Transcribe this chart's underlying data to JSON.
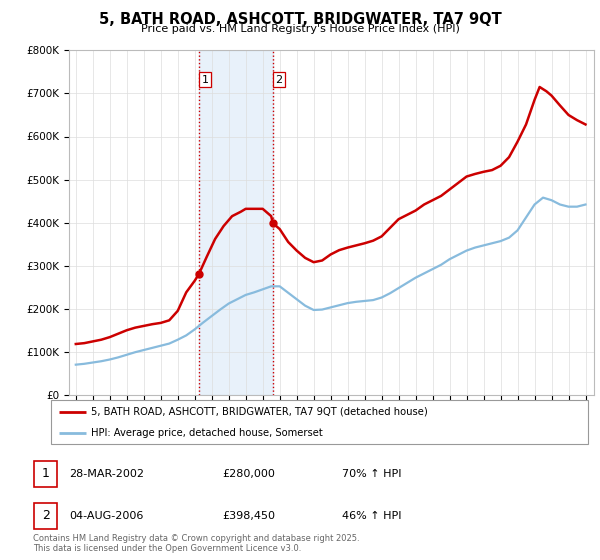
{
  "title": "5, BATH ROAD, ASHCOTT, BRIDGWATER, TA7 9QT",
  "subtitle": "Price paid vs. HM Land Registry's House Price Index (HPI)",
  "ylim": [
    0,
    800000
  ],
  "yticks": [
    0,
    100000,
    200000,
    300000,
    400000,
    500000,
    600000,
    700000,
    800000
  ],
  "ytick_labels": [
    "£0",
    "£100K",
    "£200K",
    "£300K",
    "£400K",
    "£500K",
    "£600K",
    "£700K",
    "£800K"
  ],
  "xlim_start": 1994.6,
  "xlim_end": 2025.5,
  "sale1_date": 2002.24,
  "sale1_price": 280000,
  "sale1_label": "1",
  "sale2_date": 2006.6,
  "sale2_price": 398450,
  "sale2_label": "2",
  "shade_color": "#cce0f5",
  "shade_alpha": 0.45,
  "vline_color": "#cc0000",
  "red_line_color": "#cc0000",
  "blue_line_color": "#88bbdd",
  "grid_color": "#dddddd",
  "legend_label_red": "5, BATH ROAD, ASHCOTT, BRIDGWATER, TA7 9QT (detached house)",
  "legend_label_blue": "HPI: Average price, detached house, Somerset",
  "transaction_table": [
    {
      "num": "1",
      "date": "28-MAR-2002",
      "price": "£280,000",
      "hpi": "70% ↑ HPI"
    },
    {
      "num": "2",
      "date": "04-AUG-2006",
      "price": "£398,450",
      "hpi": "46% ↑ HPI"
    }
  ],
  "footnote": "Contains HM Land Registry data © Crown copyright and database right 2025.\nThis data is licensed under the Open Government Licence v3.0.",
  "red_x": [
    1995.0,
    1995.5,
    1996.0,
    1996.5,
    1997.0,
    1997.5,
    1998.0,
    1998.5,
    1999.0,
    1999.5,
    2000.0,
    2000.5,
    2001.0,
    2001.5,
    2002.0,
    2002.24,
    2002.7,
    2003.2,
    2003.7,
    2004.2,
    2004.7,
    2005.0,
    2005.5,
    2006.0,
    2006.5,
    2006.6,
    2007.0,
    2007.5,
    2008.0,
    2008.5,
    2009.0,
    2009.5,
    2010.0,
    2010.5,
    2011.0,
    2011.5,
    2012.0,
    2012.5,
    2013.0,
    2013.5,
    2014.0,
    2014.5,
    2015.0,
    2015.5,
    2016.0,
    2016.5,
    2017.0,
    2017.5,
    2018.0,
    2018.5,
    2019.0,
    2019.5,
    2020.0,
    2020.5,
    2021.0,
    2021.5,
    2022.0,
    2022.3,
    2022.7,
    2023.0,
    2023.5,
    2024.0,
    2024.5,
    2025.0
  ],
  "red_y": [
    118000,
    120000,
    124000,
    128000,
    134000,
    142000,
    150000,
    156000,
    160000,
    164000,
    167000,
    173000,
    195000,
    238000,
    265000,
    280000,
    320000,
    362000,
    392000,
    415000,
    425000,
    432000,
    432000,
    432000,
    415000,
    398450,
    385000,
    355000,
    335000,
    318000,
    308000,
    312000,
    326000,
    336000,
    342000,
    347000,
    352000,
    358000,
    368000,
    388000,
    408000,
    418000,
    428000,
    442000,
    452000,
    462000,
    477000,
    492000,
    507000,
    513000,
    518000,
    522000,
    532000,
    552000,
    588000,
    628000,
    685000,
    715000,
    705000,
    695000,
    672000,
    650000,
    638000,
    628000
  ],
  "blue_x": [
    1995.0,
    1995.5,
    1996.0,
    1996.5,
    1997.0,
    1997.5,
    1998.0,
    1998.5,
    1999.0,
    1999.5,
    2000.0,
    2000.5,
    2001.0,
    2001.5,
    2002.0,
    2002.5,
    2003.0,
    2003.5,
    2004.0,
    2004.5,
    2005.0,
    2005.5,
    2006.0,
    2006.5,
    2007.0,
    2007.5,
    2008.0,
    2008.5,
    2009.0,
    2009.5,
    2010.0,
    2010.5,
    2011.0,
    2011.5,
    2012.0,
    2012.5,
    2013.0,
    2013.5,
    2014.0,
    2014.5,
    2015.0,
    2015.5,
    2016.0,
    2016.5,
    2017.0,
    2017.5,
    2018.0,
    2018.5,
    2019.0,
    2019.5,
    2020.0,
    2020.5,
    2021.0,
    2021.5,
    2022.0,
    2022.5,
    2023.0,
    2023.5,
    2024.0,
    2024.5,
    2025.0
  ],
  "blue_y": [
    70000,
    72000,
    75000,
    78000,
    82000,
    87000,
    93000,
    99000,
    104000,
    109000,
    114000,
    119000,
    128000,
    138000,
    152000,
    168000,
    183000,
    198000,
    212000,
    222000,
    232000,
    238000,
    245000,
    252000,
    252000,
    237000,
    222000,
    207000,
    197000,
    198000,
    203000,
    208000,
    213000,
    216000,
    218000,
    220000,
    226000,
    236000,
    248000,
    260000,
    272000,
    282000,
    292000,
    302000,
    315000,
    325000,
    335000,
    342000,
    347000,
    352000,
    357000,
    365000,
    382000,
    412000,
    442000,
    458000,
    452000,
    442000,
    437000,
    437000,
    442000
  ]
}
